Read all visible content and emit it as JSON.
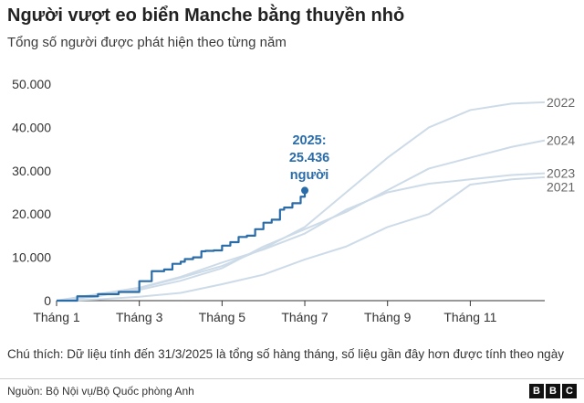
{
  "header": {
    "title": "Người vượt eo biển Manche bằng thuyền nhỏ",
    "subtitle": "Tổng số người được phát hiện theo từng năm"
  },
  "note": "Chú thích: Dữ liệu tính đến 31/3/2025 là tổng số hàng tháng, số liệu gần đây hơn được tính theo ngày",
  "source": "Nguồn: Bộ Nội vụ/Bộ Quốc phòng Anh",
  "logo": [
    "B",
    "B",
    "C"
  ],
  "chart_data": {
    "type": "line",
    "x_unit": "month",
    "xlim": [
      1,
      12.8
    ],
    "ylim": [
      0,
      50000
    ],
    "yticks": [
      0,
      10000,
      20000,
      30000,
      40000,
      50000
    ],
    "ytick_labels": [
      "0",
      "10.000",
      "20.000",
      "30.000",
      "40.000",
      "50.000"
    ],
    "xticks": [
      1,
      3,
      5,
      7,
      9,
      11
    ],
    "xtick_labels": [
      "Tháng 1",
      "Tháng 3",
      "Tháng 5",
      "Tháng 7",
      "Tháng 9",
      "Tháng 11"
    ],
    "grid": false,
    "colors": {
      "highlight": "#2a6ca8",
      "muted": "#cddbe8",
      "axis": "#333333",
      "label": "#666666"
    },
    "annotation": {
      "lines": [
        "2025:",
        "25.436",
        "người"
      ]
    },
    "series": [
      {
        "name": "2022",
        "highlight": false,
        "x": [
          1,
          2,
          3,
          4,
          5,
          6,
          7,
          8,
          9,
          10,
          11,
          12,
          12.8
        ],
        "y": [
          0,
          1000,
          2900,
          5300,
          8000,
          12000,
          17000,
          25000,
          33000,
          40000,
          44000,
          45500,
          45800
        ]
      },
      {
        "name": "2024",
        "highlight": false,
        "x": [
          1,
          2,
          3,
          4,
          5,
          6,
          7,
          8,
          9,
          10,
          11,
          12,
          12.8
        ],
        "y": [
          0,
          1500,
          2500,
          4600,
          7500,
          12500,
          16500,
          20500,
          25500,
          30500,
          33000,
          35500,
          37000
        ]
      },
      {
        "name": "2023",
        "highlight": false,
        "x": [
          1,
          2,
          3,
          4,
          5,
          6,
          7,
          8,
          9,
          10,
          11,
          12,
          12.8
        ],
        "y": [
          0,
          1500,
          3000,
          5500,
          8800,
          11800,
          15500,
          21000,
          25000,
          27000,
          28000,
          29000,
          29400
        ]
      },
      {
        "name": "2021",
        "highlight": false,
        "x": [
          1,
          2,
          3,
          4,
          5,
          6,
          7,
          8,
          9,
          10,
          11,
          12,
          12.8
        ],
        "y": [
          0,
          300,
          900,
          1800,
          3800,
          6000,
          9500,
          12500,
          17000,
          20000,
          26800,
          28000,
          28500
        ]
      },
      {
        "name": "2025",
        "highlight": true,
        "x": [
          1,
          1.5,
          2,
          2.5,
          3,
          3.3,
          3.6,
          3.8,
          4.0,
          4.1,
          4.3,
          4.5,
          4.6,
          4.8,
          5.0,
          5.2,
          5.4,
          5.6,
          5.8,
          6.0,
          6.2,
          6.4,
          6.5,
          6.7,
          6.9,
          7.0
        ],
        "y": [
          0,
          1000,
          1500,
          2000,
          4500,
          6800,
          7200,
          8500,
          9000,
          9600,
          10000,
          11400,
          11500,
          11600,
          12700,
          13500,
          14700,
          15000,
          16500,
          18000,
          18700,
          21000,
          21500,
          22500,
          24000,
          25436
        ]
      }
    ]
  }
}
